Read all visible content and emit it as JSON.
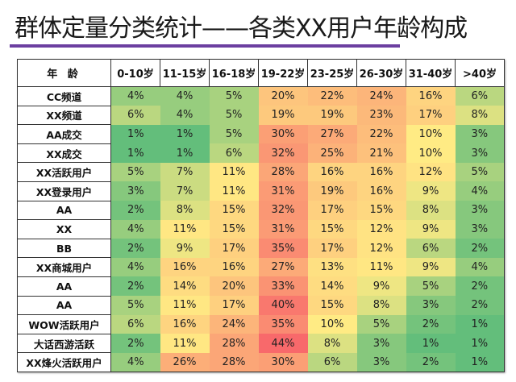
{
  "title": "群体定量分类统计——各类XX用户年龄构成",
  "accent_color": "#6B3FA0",
  "table": {
    "corner_label": "年 龄",
    "columns": [
      "0-10岁",
      "11-15岁",
      "16-18岁",
      "19-22岁",
      "23-25岁",
      "26-30岁",
      "31-40岁",
      ">40岁"
    ],
    "rows": [
      {
        "label": "CC频道",
        "values": [
          "4%",
          "4%",
          "5%",
          "20%",
          "22%",
          "24%",
          "16%",
          "6%"
        ]
      },
      {
        "label": "XX频道",
        "values": [
          "6%",
          "4%",
          "5%",
          "19%",
          "19%",
          "23%",
          "17%",
          "8%"
        ]
      },
      {
        "label": "AA成交",
        "values": [
          "1%",
          "1%",
          "5%",
          "30%",
          "27%",
          "22%",
          "10%",
          "3%"
        ]
      },
      {
        "label": "XX成交",
        "values": [
          "1%",
          "1%",
          "6%",
          "32%",
          "25%",
          "21%",
          "10%",
          "3%"
        ]
      },
      {
        "label": "XX活跃用户",
        "values": [
          "5%",
          "7%",
          "11%",
          "28%",
          "16%",
          "16%",
          "12%",
          "5%"
        ]
      },
      {
        "label": "XX登录用户",
        "values": [
          "3%",
          "7%",
          "11%",
          "31%",
          "19%",
          "16%",
          "9%",
          "4%"
        ]
      },
      {
        "label": "AA",
        "values": [
          "2%",
          "8%",
          "15%",
          "32%",
          "17%",
          "15%",
          "8%",
          "3%"
        ]
      },
      {
        "label": "XX",
        "values": [
          "4%",
          "11%",
          "15%",
          "31%",
          "15%",
          "12%",
          "9%",
          "3%"
        ]
      },
      {
        "label": "BB",
        "values": [
          "2%",
          "9%",
          "17%",
          "35%",
          "17%",
          "12%",
          "6%",
          "2%"
        ]
      },
      {
        "label": "XX商城用户",
        "values": [
          "4%",
          "16%",
          "16%",
          "27%",
          "13%",
          "11%",
          "9%",
          "4%"
        ]
      },
      {
        "label": "AA",
        "values": [
          "2%",
          "14%",
          "20%",
          "33%",
          "14%",
          "9%",
          "5%",
          "2%"
        ]
      },
      {
        "label": "AA",
        "values": [
          "5%",
          "11%",
          "17%",
          "40%",
          "15%",
          "8%",
          "3%",
          "2%"
        ]
      },
      {
        "label": "WOW活跃用户",
        "values": [
          "6%",
          "16%",
          "24%",
          "35%",
          "10%",
          "5%",
          "2%",
          "1%"
        ]
      },
      {
        "label": "大话西游活跃",
        "values": [
          "2%",
          "11%",
          "28%",
          "44%",
          "8%",
          "3%",
          "1%",
          "1%"
        ]
      },
      {
        "label": "XX烽火活跃用户",
        "values": [
          "4%",
          "26%",
          "28%",
          "30%",
          "6%",
          "3%",
          "2%",
          "1%"
        ]
      }
    ]
  },
  "chart_data": {
    "type": "heatmap",
    "title": "群体定量分类统计——各类XX用户年龄构成",
    "xlabel": "年龄",
    "ylabel": "",
    "x": [
      "0-10岁",
      "11-15岁",
      "16-18岁",
      "19-22岁",
      "23-25岁",
      "26-30岁",
      "31-40岁",
      ">40岁"
    ],
    "y": [
      "CC频道",
      "XX频道",
      "AA成交",
      "XX成交",
      "XX活跃用户",
      "XX登录用户",
      "AA",
      "XX",
      "BB",
      "XX商城用户",
      "AA",
      "AA",
      "WOW活跃用户",
      "大话西游活跃",
      "XX烽火活跃用户"
    ],
    "values": [
      [
        4,
        4,
        5,
        20,
        22,
        24,
        16,
        6
      ],
      [
        6,
        4,
        5,
        19,
        19,
        23,
        17,
        8
      ],
      [
        1,
        1,
        5,
        30,
        27,
        22,
        10,
        3
      ],
      [
        1,
        1,
        6,
        32,
        25,
        21,
        10,
        3
      ],
      [
        5,
        7,
        11,
        28,
        16,
        16,
        12,
        5
      ],
      [
        3,
        7,
        11,
        31,
        19,
        16,
        9,
        4
      ],
      [
        2,
        8,
        15,
        32,
        17,
        15,
        8,
        3
      ],
      [
        4,
        11,
        15,
        31,
        15,
        12,
        9,
        3
      ],
      [
        2,
        9,
        17,
        35,
        17,
        12,
        6,
        2
      ],
      [
        4,
        16,
        16,
        27,
        13,
        11,
        9,
        4
      ],
      [
        2,
        14,
        20,
        33,
        14,
        9,
        5,
        2
      ],
      [
        5,
        11,
        17,
        40,
        15,
        8,
        3,
        2
      ],
      [
        6,
        16,
        24,
        35,
        10,
        5,
        2,
        1
      ],
      [
        2,
        11,
        28,
        44,
        8,
        3,
        1,
        1
      ],
      [
        4,
        26,
        28,
        30,
        6,
        3,
        2,
        1
      ]
    ],
    "unit": "%",
    "color_scale": {
      "low": "#63BE7B",
      "mid": "#FFEB84",
      "high": "#F8696B"
    },
    "legend": "none",
    "grid": false
  }
}
